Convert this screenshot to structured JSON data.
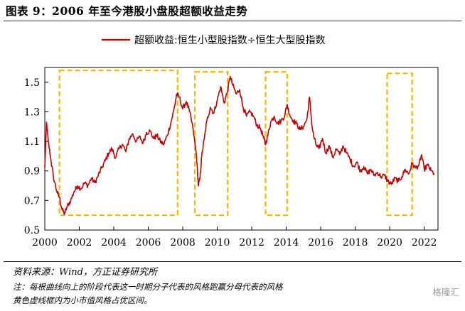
{
  "figure": {
    "title": "图表 9：2006 年至今港股小盘股超额收益走势",
    "source": "资料来源：Wind，方正证券研究所",
    "note_1": "注：每根曲线向上的阶段代表这一时期分子代表的风格跑赢分母代表的风格",
    "note_2": "黄色虚线框内为小市值风格占优区间。",
    "watermark": "格隆汇"
  },
  "colors": {
    "line": "#c00000",
    "highlight_box": "#f5b800",
    "title_rule": "#b00000"
  },
  "chart_data": {
    "type": "line",
    "title": "",
    "xlabel": "",
    "ylabel": "",
    "xlim": [
      2000,
      2022.8
    ],
    "ylim": [
      0.5,
      1.6
    ],
    "x_ticks": [
      2000,
      2002,
      2004,
      2006,
      2008,
      2010,
      2012,
      2014,
      2016,
      2018,
      2020,
      2022
    ],
    "y_ticks": [
      0.5,
      0.7,
      0.9,
      1.1,
      1.3,
      1.5
    ],
    "y_tick_labels": [
      "0.5",
      "0.7",
      "0.9",
      "1.1",
      "1.3",
      "1.5"
    ],
    "grid": false,
    "legend_position": "top-center",
    "series": [
      {
        "name": "超额收益:恒生小型股指数÷恒生大型股指数",
        "x": [
          2000.0,
          2000.1,
          2000.2,
          2000.35,
          2000.5,
          2000.7,
          2000.85,
          2001.0,
          2001.15,
          2001.3,
          2001.5,
          2001.7,
          2001.9,
          2002.1,
          2002.3,
          2002.5,
          2002.7,
          2002.9,
          2003.1,
          2003.3,
          2003.5,
          2003.7,
          2003.9,
          2004.1,
          2004.3,
          2004.5,
          2004.7,
          2004.9,
          2005.1,
          2005.3,
          2005.5,
          2005.7,
          2005.9,
          2006.1,
          2006.3,
          2006.5,
          2006.7,
          2006.9,
          2007.1,
          2007.3,
          2007.5,
          2007.65,
          2007.8,
          2008.0,
          2008.2,
          2008.4,
          2008.6,
          2008.8,
          2008.9,
          2009.0,
          2009.1,
          2009.25,
          2009.4,
          2009.6,
          2009.8,
          2010.0,
          2010.2,
          2010.4,
          2010.6,
          2010.75,
          2010.9,
          2011.1,
          2011.3,
          2011.5,
          2011.7,
          2011.9,
          2012.1,
          2012.3,
          2012.5,
          2012.7,
          2012.8,
          2012.95,
          2013.1,
          2013.3,
          2013.5,
          2013.7,
          2013.9,
          2014.05,
          2014.2,
          2014.4,
          2014.6,
          2014.8,
          2015.0,
          2015.2,
          2015.35,
          2015.5,
          2015.6,
          2015.75,
          2015.9,
          2016.1,
          2016.3,
          2016.5,
          2016.7,
          2016.9,
          2017.1,
          2017.3,
          2017.5,
          2017.7,
          2017.9,
          2018.1,
          2018.3,
          2018.5,
          2018.7,
          2018.9,
          2019.1,
          2019.3,
          2019.5,
          2019.7,
          2019.9,
          2020.1,
          2020.3,
          2020.5,
          2020.7,
          2020.9,
          2021.1,
          2021.3,
          2021.5,
          2021.7,
          2021.85,
          2022.0,
          2022.2,
          2022.4,
          2022.6
        ],
        "values": [
          0.92,
          1.23,
          1.1,
          0.98,
          0.86,
          0.76,
          0.72,
          0.64,
          0.61,
          0.66,
          0.7,
          0.76,
          0.8,
          0.78,
          0.82,
          0.8,
          0.85,
          0.82,
          0.87,
          0.92,
          0.97,
          1.02,
          1.05,
          0.99,
          1.05,
          1.08,
          1.03,
          1.12,
          1.15,
          1.1,
          1.13,
          1.09,
          1.16,
          1.17,
          1.12,
          1.14,
          1.1,
          1.08,
          1.14,
          1.22,
          1.32,
          1.42,
          1.4,
          1.32,
          1.37,
          1.3,
          1.18,
          1.0,
          0.8,
          0.85,
          1.0,
          1.12,
          1.24,
          1.33,
          1.29,
          1.38,
          1.47,
          1.36,
          1.44,
          1.54,
          1.48,
          1.42,
          1.45,
          1.33,
          1.27,
          1.3,
          1.27,
          1.21,
          1.19,
          1.12,
          1.08,
          1.15,
          1.23,
          1.27,
          1.22,
          1.24,
          1.27,
          1.35,
          1.28,
          1.24,
          1.22,
          1.18,
          1.2,
          1.25,
          1.4,
          1.2,
          1.13,
          1.07,
          1.05,
          1.12,
          1.02,
          1.07,
          0.99,
          1.05,
          1.01,
          1.07,
          1.02,
          0.98,
          0.93,
          0.96,
          0.9,
          0.93,
          0.88,
          0.91,
          0.87,
          0.89,
          0.86,
          0.87,
          0.83,
          0.81,
          0.85,
          0.83,
          0.86,
          0.91,
          0.88,
          0.95,
          0.92,
          0.94,
          1.01,
          0.91,
          0.94,
          0.9,
          0.88
        ]
      }
    ],
    "highlight_regions": [
      {
        "x0": 2000.85,
        "x1": 2007.7,
        "y0": 0.6,
        "y1": 1.58
      },
      {
        "x0": 2008.7,
        "x1": 2010.6,
        "y0": 0.6,
        "y1": 1.57
      },
      {
        "x0": 2012.8,
        "x1": 2014.05,
        "y0": 0.6,
        "y1": 1.57
      },
      {
        "x0": 2019.85,
        "x1": 2021.3,
        "y0": 0.6,
        "y1": 1.56
      }
    ]
  }
}
